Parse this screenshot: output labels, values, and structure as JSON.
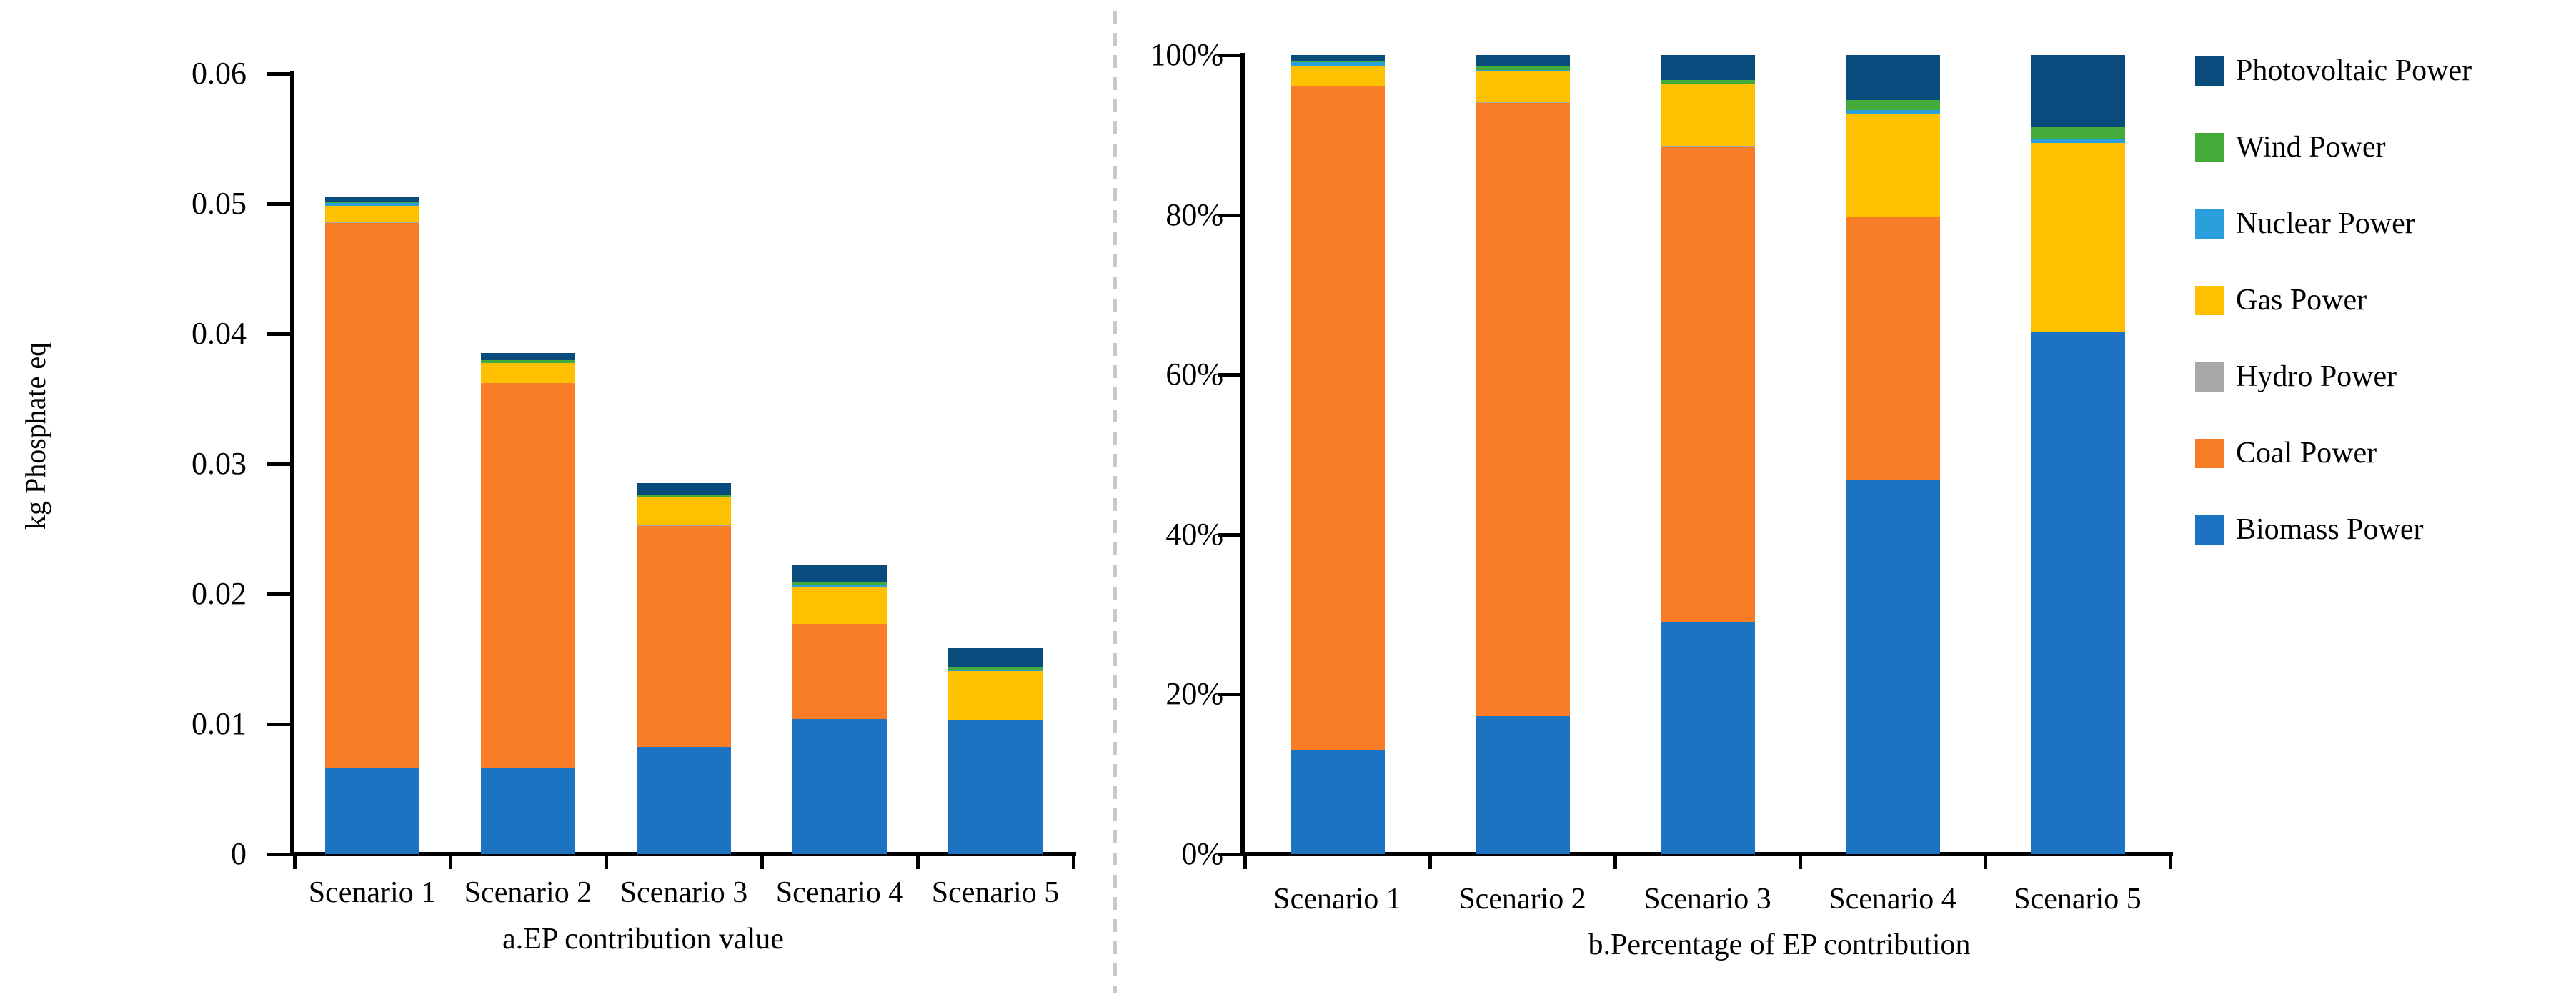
{
  "figure": {
    "background": "#ffffff",
    "left_chart_title": "a.EP contribution value",
    "right_chart_title": "b.Percentage of EP contribution",
    "left_y_axis_title": "kg Phosphate eq"
  },
  "colors": {
    "photovoltaic": "#0A4B7D",
    "wind": "#43AB3A",
    "nuclear": "#29A0DB",
    "gas": "#FFC000",
    "hydro": "#A8A8A8",
    "coal": "#F97D27",
    "biomass": "#1B73C2",
    "axis": "#000000",
    "divider": "#C9C9C9"
  },
  "legend": {
    "position": "right",
    "items": [
      {
        "label": "Photovoltaic Power",
        "color_key": "photovoltaic"
      },
      {
        "label": "Wind Power",
        "color_key": "wind"
      },
      {
        "label": "Nuclear Power",
        "color_key": "nuclear"
      },
      {
        "label": "Gas Power",
        "color_key": "gas"
      },
      {
        "label": "Hydro Power",
        "color_key": "hydro"
      },
      {
        "label": "Coal Power",
        "color_key": "coal"
      },
      {
        "label": "Biomass Power",
        "color_key": "biomass"
      }
    ]
  },
  "chart_data": [
    {
      "id": "left",
      "type": "bar",
      "stacked": true,
      "title": "a.EP contribution value",
      "xlabel": "",
      "ylabel": "kg Phosphate eq",
      "categories": [
        "Scenario 1",
        "Scenario 2",
        "Scenario 3",
        "Scenario 4",
        "Scenario  5"
      ],
      "ylim": [
        0,
        0.06
      ],
      "ymax": 0.06,
      "grid": false,
      "ytick_labels_bottom_to_top": [
        "0",
        "0.01",
        "0.02",
        "0.03",
        "0.04",
        "0.05",
        "0.06"
      ],
      "totals": [
        0.0505,
        0.0385,
        0.0285,
        0.0222,
        0.0158
      ],
      "series": [
        {
          "name": "Biomass Power",
          "color_key": "biomass",
          "values": [
            0.00657,
            0.00666,
            0.00827,
            0.01039,
            0.01032
          ]
        },
        {
          "name": "Coal Power",
          "color_key": "coal",
          "values": [
            0.04197,
            0.02953,
            0.01696,
            0.0073,
            0.0
          ]
        },
        {
          "name": "Hydro Power",
          "color_key": "hydro",
          "values": [
            5e-05,
            4e-05,
            3e-05,
            2e-05,
            2e-05
          ]
        },
        {
          "name": "Gas Power",
          "color_key": "gas",
          "values": [
            0.00126,
            0.0015,
            0.00219,
            0.00286,
            0.00373
          ]
        },
        {
          "name": "Nuclear Power",
          "color_key": "nuclear",
          "values": [
            0.0002,
            4e-05,
            3e-05,
            9e-05,
            8e-05
          ]
        },
        {
          "name": "Wind Power",
          "color_key": "wind",
          "values": [
            5e-05,
            0.00019,
            0.00014,
            0.00029,
            0.00024
          ]
        },
        {
          "name": "Photovoltaic Power",
          "color_key": "photovoltaic",
          "values": [
            0.0004,
            0.00054,
            0.00088,
            0.00124,
            0.00142
          ]
        }
      ]
    },
    {
      "id": "right",
      "type": "bar",
      "stacked": true,
      "percent": true,
      "title": "b.Percentage of EP contribution",
      "xlabel": "",
      "ylabel": "",
      "categories": [
        "Scenario 1",
        "Scenario 2",
        "Scenario 3",
        "Scenario 4",
        "Scenario 5"
      ],
      "ylim": [
        0,
        100
      ],
      "ymax": 100,
      "grid": false,
      "ytick_labels_bottom_to_top": [
        "0%",
        "20%",
        "40%",
        "60%",
        "80%",
        "100%"
      ],
      "series": [
        {
          "name": "Biomass Power",
          "color_key": "biomass",
          "values": [
            13.0,
            17.3,
            29.0,
            46.8,
            65.3
          ]
        },
        {
          "name": "Coal Power",
          "color_key": "coal",
          "values": [
            83.1,
            76.7,
            59.5,
            32.9,
            0.0
          ]
        },
        {
          "name": "Hydro Power",
          "color_key": "hydro",
          "values": [
            0.1,
            0.1,
            0.1,
            0.1,
            0.1
          ]
        },
        {
          "name": "Gas Power",
          "color_key": "gas",
          "values": [
            2.5,
            3.9,
            7.7,
            12.9,
            23.6
          ]
        },
        {
          "name": "Nuclear Power",
          "color_key": "nuclear",
          "values": [
            0.4,
            0.1,
            0.1,
            0.4,
            0.5
          ]
        },
        {
          "name": "Wind Power",
          "color_key": "wind",
          "values": [
            0.1,
            0.5,
            0.5,
            1.3,
            1.5
          ]
        },
        {
          "name": "Photovoltaic Power",
          "color_key": "photovoltaic",
          "values": [
            0.8,
            1.4,
            3.1,
            5.6,
            9.0
          ]
        }
      ]
    }
  ]
}
